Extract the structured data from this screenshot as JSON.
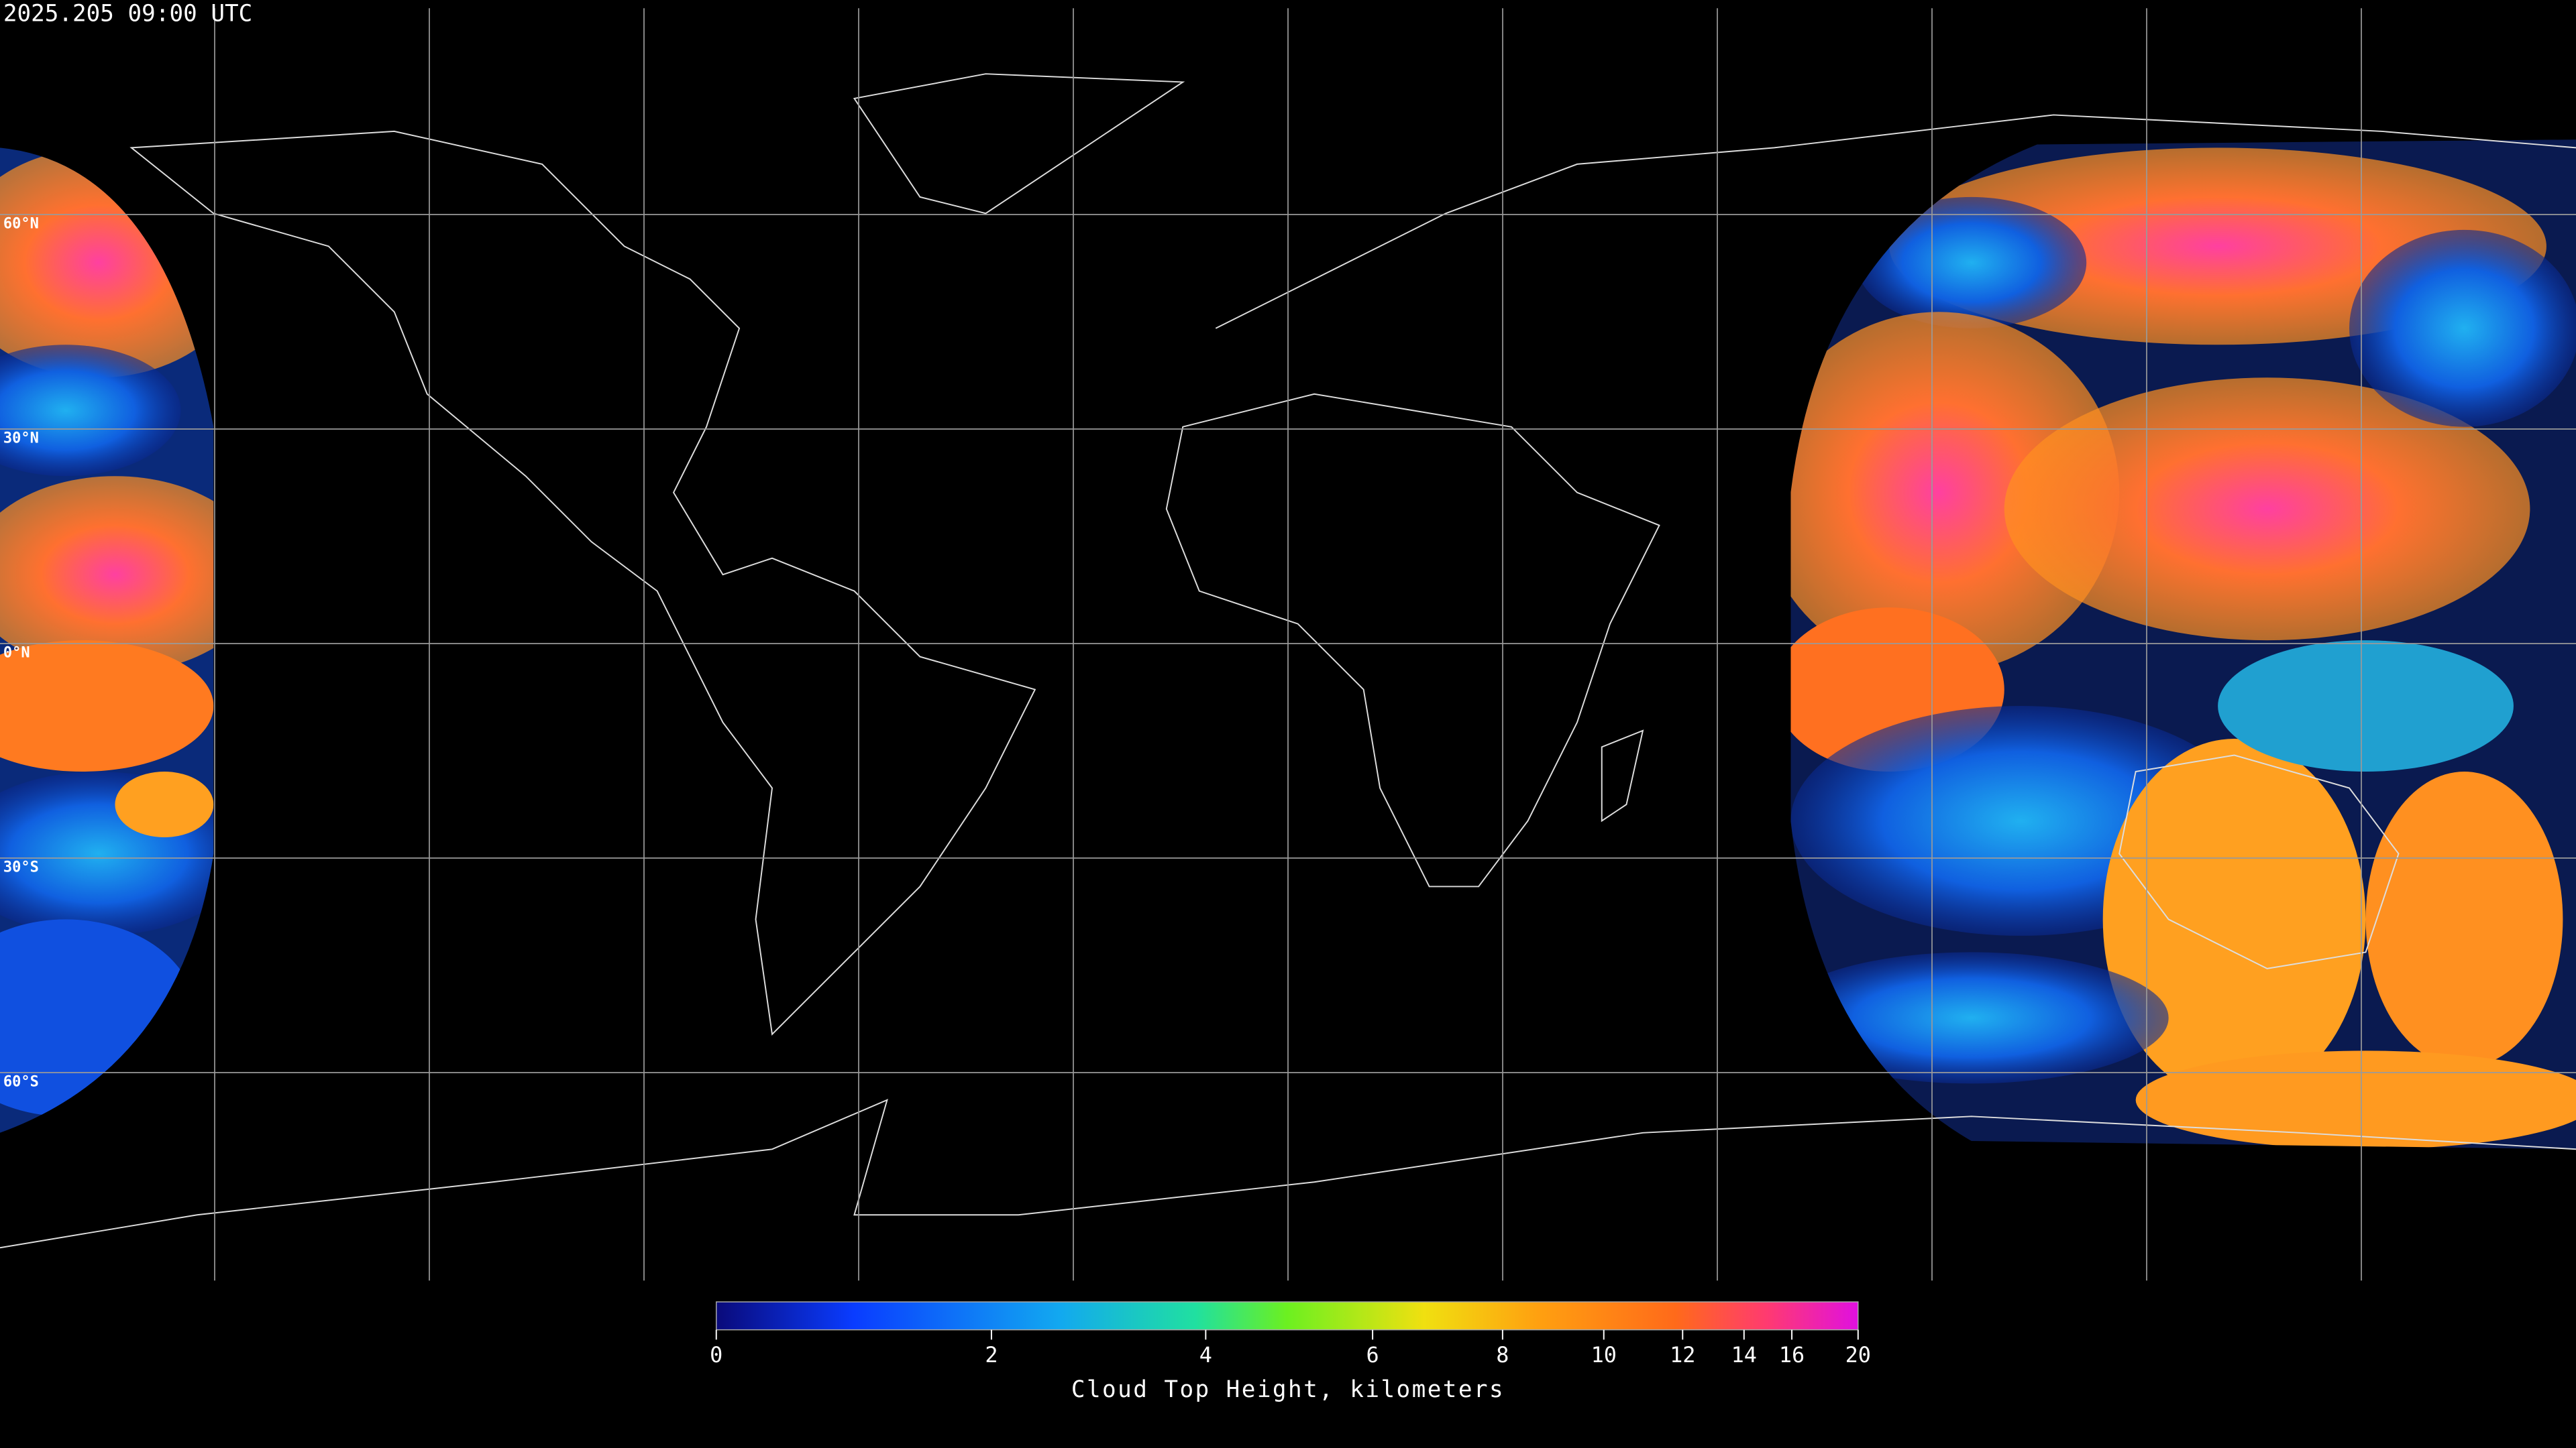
{
  "timestamp": "2025.205 09:00 UTC",
  "latitude_labels": [
    "60°N",
    "30°N",
    "0°N",
    "30°S",
    "60°S"
  ],
  "colorbar": {
    "label": "Cloud Top Height, kilometers",
    "range": [
      0,
      20
    ],
    "ticks": [
      0,
      2,
      4,
      6,
      8,
      10,
      12,
      14,
      16,
      20
    ]
  }
}
